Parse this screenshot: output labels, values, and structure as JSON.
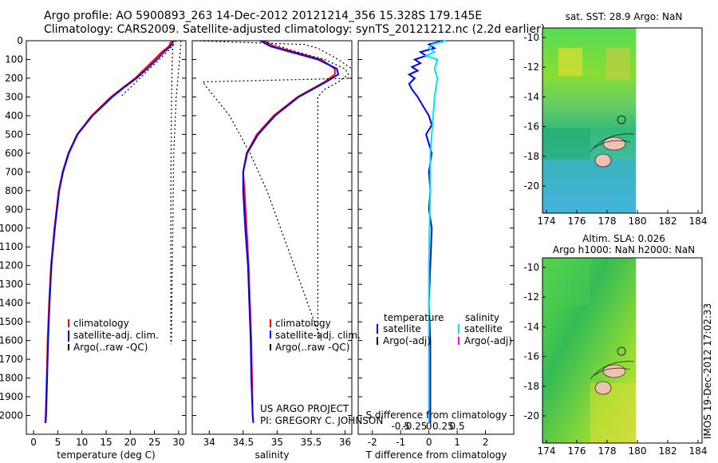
{
  "header": {
    "line1": "Argo profile: AO 5900893_263 14-Dec-2012 20121214_356 15.328S 179.145E",
    "line2": "Climatology: CARS2009. Satellite-adjusted climatology: synTS_20121212.nc (2.2d earlier)"
  },
  "credits": {
    "project": "US ARGO PROJECT",
    "pi": "PI: GREGORY C. JOHNSON"
  },
  "stamp": "IMOS 19-Dec-2012 17:02:33",
  "colors": {
    "climatology": "#ff0000",
    "satellite": "#0000ff",
    "argo": "#000000",
    "satellite_salinity": "#00e5ee",
    "argo_adj_salinity": "#ff00ff"
  },
  "chart_data": [
    {
      "type": "line",
      "id": "temperature",
      "xlabel": "temperature (deg C)",
      "ylabel": "",
      "xlim": [
        -1.5,
        31.5
      ],
      "ylim": [
        2100,
        0
      ],
      "xticks": [
        0,
        5,
        10,
        15,
        20,
        25,
        30
      ],
      "yticks": [
        0,
        100,
        200,
        300,
        400,
        500,
        600,
        700,
        800,
        900,
        1000,
        1100,
        1200,
        1300,
        1400,
        1500,
        1600,
        1700,
        1800,
        1900,
        2000
      ],
      "legend": [
        "climatology",
        "satellite-adj. clim.",
        "Argo(..raw -QC)"
      ],
      "legend_position": "bottom-center",
      "series": [
        {
          "name": "climatology",
          "color": "#ff0000",
          "depth": [
            0,
            30,
            60,
            100,
            150,
            200,
            250,
            300,
            400,
            500,
            600,
            700,
            800,
            1000,
            1200,
            1400,
            1600,
            1800,
            2000,
            2040
          ],
          "values": [
            28.5,
            28.0,
            26.5,
            25.0,
            23.0,
            21.0,
            18.5,
            16.0,
            12.0,
            9.0,
            7.2,
            6.0,
            5.2,
            4.3,
            3.6,
            3.2,
            2.9,
            2.7,
            2.5,
            2.4
          ]
        },
        {
          "name": "satellite-adj. clim.",
          "color": "#0000ff",
          "depth": [
            0,
            30,
            60,
            100,
            150,
            200,
            250,
            300,
            400,
            500,
            600,
            700,
            800,
            1000,
            1200,
            1400,
            1600,
            1800,
            2000,
            2040
          ],
          "values": [
            29.0,
            28.3,
            27.0,
            25.5,
            23.5,
            21.3,
            18.7,
            16.3,
            12.2,
            9.1,
            7.3,
            6.1,
            5.3,
            4.4,
            3.7,
            3.3,
            3.0,
            2.8,
            2.6,
            2.5
          ]
        },
        {
          "name": "Argo(..raw -QC)",
          "color": "#000000",
          "dash": true,
          "depth": [
            0,
            20,
            50,
            100,
            150,
            200,
            250,
            300
          ],
          "values": [
            29.5,
            29.0,
            28.0,
            26.0,
            24.0,
            22.0,
            20.0,
            18.0
          ]
        },
        {
          "name": "Argo raw (right)",
          "color": "#000000",
          "dash": true,
          "depth": [
            0,
            100,
            200,
            400,
            800,
            1200,
            1620
          ],
          "values": [
            28.8,
            28.7,
            28.6,
            28.5,
            28.4,
            28.4,
            28.4
          ]
        },
        {
          "name": "Argo -QC (far right)",
          "color": "#000000",
          "dash": true,
          "depth": [
            0,
            100,
            300,
            600,
            1000,
            1400,
            1620
          ],
          "values": [
            30.5,
            30.2,
            29.5,
            29.0,
            28.8,
            28.6,
            28.5
          ]
        }
      ]
    },
    {
      "type": "line",
      "id": "salinity",
      "xlabel": "salinity",
      "ylabel": "",
      "xlim": [
        33.75,
        36.1
      ],
      "ylim": [
        2100,
        0
      ],
      "xticks": [
        34,
        34.5,
        35,
        35.5,
        36
      ],
      "legend": [
        "climatology",
        "satellite-adj. clim.",
        "Argo(..raw -QC)"
      ],
      "legend_position": "bottom-center",
      "series": [
        {
          "name": "climatology",
          "color": "#ff0000",
          "depth": [
            0,
            30,
            60,
            100,
            150,
            180,
            220,
            300,
            400,
            500,
            600,
            700,
            800,
            1000,
            1200,
            1400,
            1600,
            1800,
            2000,
            2040
          ],
          "values": [
            34.8,
            34.95,
            35.25,
            35.65,
            35.85,
            35.85,
            35.7,
            35.3,
            34.95,
            34.7,
            34.55,
            34.5,
            34.52,
            34.55,
            34.58,
            34.6,
            34.62,
            34.63,
            34.64,
            34.65
          ]
        },
        {
          "name": "satellite-adj. clim.",
          "color": "#0000ff",
          "depth": [
            0,
            30,
            60,
            100,
            150,
            180,
            220,
            300,
            400,
            500,
            600,
            700,
            800,
            1000,
            1200,
            1400,
            1600,
            1800,
            2000,
            2040
          ],
          "values": [
            34.75,
            34.9,
            35.2,
            35.6,
            35.88,
            35.9,
            35.72,
            35.32,
            34.97,
            34.72,
            34.56,
            34.5,
            34.5,
            34.53,
            34.57,
            34.59,
            34.61,
            34.62,
            34.64,
            34.65
          ]
        },
        {
          "name": "Argo raw",
          "color": "#000000",
          "dash": true,
          "depth": [
            0,
            50,
            100,
            150,
            180,
            220,
            260,
            300,
            400,
            600,
            800,
            1000,
            1200,
            1400,
            1600
          ],
          "values": [
            34.8,
            35.2,
            35.7,
            36.0,
            36.05,
            35.9,
            35.7,
            35.6,
            35.6,
            35.6,
            35.6,
            35.6,
            35.6,
            35.6,
            35.6
          ]
        },
        {
          "name": "Argo -QC",
          "color": "#000000",
          "dash": true,
          "depth": [
            0,
            20,
            40,
            60,
            100,
            150,
            200,
            220,
            400,
            600,
            800,
            1000,
            1200,
            1400,
            1600
          ],
          "values": [
            33.8,
            35.4,
            35.6,
            35.7,
            35.9,
            36.1,
            36.1,
            33.9,
            34.3,
            34.6,
            34.85,
            35.05,
            35.25,
            35.45,
            35.65
          ]
        }
      ]
    },
    {
      "type": "line",
      "id": "difference",
      "xlabel": "T difference from climatology",
      "xlabel_top": "S difference from climatology",
      "xlim": [
        -2.5,
        3.0
      ],
      "ylim": [
        2100,
        0
      ],
      "xticks_T": [
        -2,
        -1,
        0,
        1,
        2
      ],
      "xticks_S": [
        -0.5,
        -0.25,
        0,
        0.25,
        0.5
      ],
      "legend": {
        "temperature_title": "temperature",
        "salinity_title": "salinity",
        "entries": [
          "satellite",
          "Argo(-adj)",
          "satellite",
          "Argo(-adj)"
        ]
      },
      "legend_position": "bottom-center",
      "series": [
        {
          "name": "temperature satellite",
          "color": "#0000ff",
          "depth": [
            0,
            20,
            40,
            60,
            80,
            100,
            120,
            140,
            160,
            180,
            200,
            230,
            260,
            300,
            350,
            400,
            450,
            500,
            550,
            600,
            700,
            800,
            900,
            1000,
            1200,
            1400,
            1600,
            1800,
            2000,
            2040
          ],
          "values": [
            0.5,
            0.0,
            0.2,
            -0.3,
            -0.1,
            -0.5,
            -0.3,
            -0.6,
            -0.4,
            -0.7,
            -0.5,
            -0.7,
            -0.6,
            -0.4,
            -0.2,
            0.0,
            0.1,
            -0.1,
            0.0,
            0.1,
            0.0,
            0.05,
            0.0,
            0.1,
            0.05,
            0.0,
            0.05,
            0.05,
            0.05,
            0.05
          ]
        },
        {
          "name": "salinity satellite",
          "color": "#00e5ee",
          "depth": [
            0,
            20,
            40,
            60,
            80,
            100,
            150,
            200,
            300,
            400,
            500,
            600,
            800,
            1000,
            1200,
            1400,
            1600,
            1800,
            2000,
            2040
          ],
          "values": [
            0.6,
            0.1,
            0.0,
            0.2,
            -0.1,
            0.3,
            0.2,
            0.3,
            0.2,
            0.15,
            0.1,
            0.05,
            0.05,
            0.02,
            0.0,
            0.0,
            0.0,
            0.0,
            0.0,
            0.0
          ]
        }
      ]
    }
  ],
  "maps": [
    {
      "id": "sst-map",
      "title": "sat. SST: 28.9 Argo: NaN",
      "xticks": [
        174,
        176,
        178,
        180,
        182,
        184
      ],
      "yticks": [
        -10,
        -12,
        -14,
        -16,
        -18,
        -20
      ]
    },
    {
      "id": "sla-map",
      "title_line1": "Altim. SLA: 0.026",
      "title_line2": "Argo h1000: NaN h2000: NaN",
      "xticks": [
        174,
        176,
        178,
        180,
        182,
        184
      ],
      "yticks": [
        -10,
        -12,
        -14,
        -16,
        -18,
        -20
      ]
    }
  ]
}
